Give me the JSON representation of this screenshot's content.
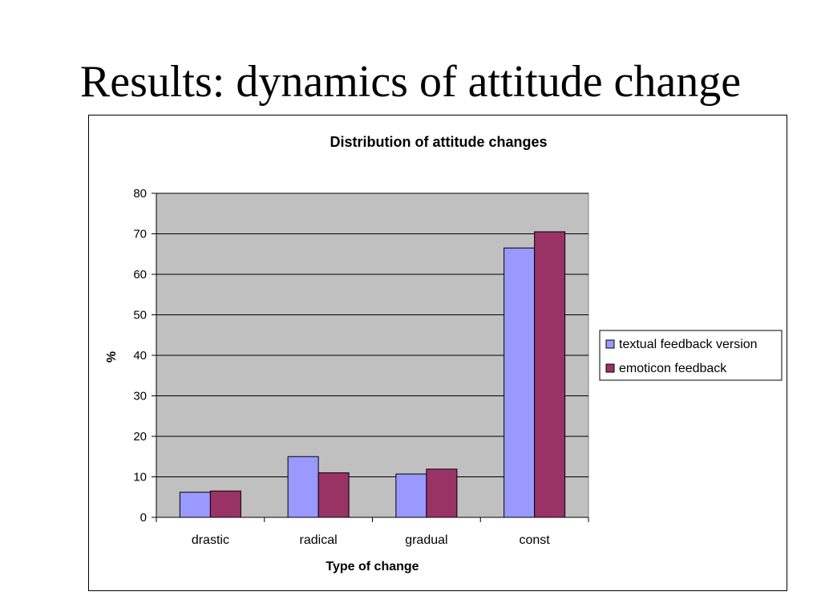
{
  "slide": {
    "title": "Results: dynamics of attitude change"
  },
  "colors": {
    "plot_area": "#c0c0c0",
    "textual": "#9999ff",
    "emoticon": "#993366",
    "grid": "#000000"
  },
  "chart_data": {
    "type": "bar",
    "title": "Distribution of attitude changes",
    "xlabel": "Type of change",
    "ylabel": "%",
    "categories": [
      "drastic",
      "radical",
      "gradual",
      "const"
    ],
    "series": [
      {
        "name": "textual feedback version",
        "color": "#9999ff",
        "values": [
          6.2,
          15.0,
          10.7,
          66.5
        ]
      },
      {
        "name": "emoticon feedback",
        "color": "#993366",
        "values": [
          6.5,
          11.0,
          11.9,
          70.5
        ]
      }
    ],
    "ylim": [
      0,
      80
    ],
    "yticks": [
      0,
      10,
      20,
      30,
      40,
      50,
      60,
      70,
      80
    ],
    "grid": true,
    "legend_position": "right"
  }
}
